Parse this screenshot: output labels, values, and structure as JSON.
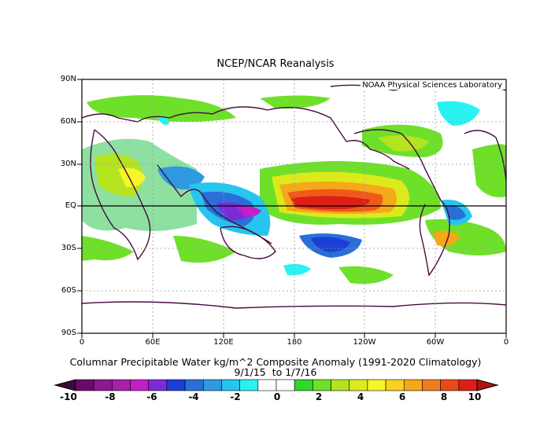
{
  "title": "NCEP/NCAR Reanalysis",
  "credit": "NOAA Physical Sciences Laboratory",
  "lat_labels": [
    "90N",
    "60N",
    "30N",
    "EQ",
    "30S",
    "60S",
    "90S"
  ],
  "lon_labels": [
    "0",
    "60E",
    "120E",
    "180",
    "120W",
    "60W",
    "0"
  ],
  "variable_caption": "Columnar Precipitable Water kg/m^2 Composite Anomaly (1991-2020 Climatology)",
  "date_caption": "9/1/15  to 1/7/16",
  "colorbar": {
    "labels": [
      "-10",
      "-8",
      "-6",
      "-4",
      "-2",
      "0",
      "2",
      "4",
      "6",
      "8",
      "10"
    ],
    "colors": [
      "#6b0a6b",
      "#8a1a8e",
      "#a821a8",
      "#c21fc8",
      "#7a2bd8",
      "#1b3fd6",
      "#2a6fd8",
      "#2f9ae0",
      "#27c4ee",
      "#2af2f2",
      "#ffffff",
      "#ffffff",
      "#2cd92c",
      "#6ee02a",
      "#b4e41e",
      "#dcea1c",
      "#f5f52a",
      "#f8d21e",
      "#f5a81a",
      "#ef7d1f",
      "#e84a1a",
      "#dd1f18"
    ]
  },
  "chart_data": {
    "type": "heatmap",
    "title": "NCEP/NCAR Reanalysis",
    "variable": "Columnar Precipitable Water kg/m^2 Composite Anomaly (1991-2020 Climatology)",
    "period": "9/1/15  to 1/7/16",
    "units": "kg/m^2",
    "scale_range": [
      -10,
      10
    ],
    "lat_range": [
      -90,
      90
    ],
    "lon_range": [
      0,
      360
    ]
  }
}
